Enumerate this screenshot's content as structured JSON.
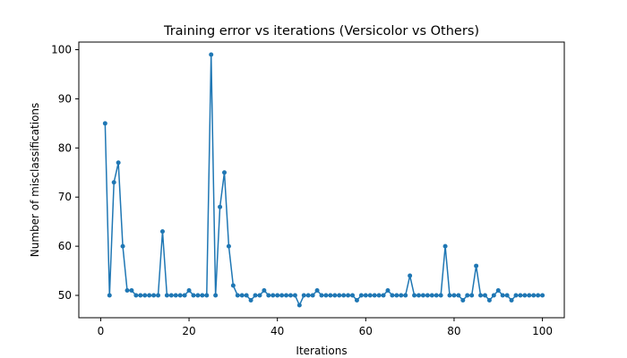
{
  "chart_data": {
    "type": "line",
    "title": "Training error vs iterations (Versicolor vs Others)",
    "xlabel": "Iterations",
    "ylabel": "Number of misclassifications",
    "xlim": [
      -4.95,
      104.95
    ],
    "ylim": [
      45.45,
      101.55
    ],
    "xticks": [
      0,
      20,
      40,
      60,
      80,
      100
    ],
    "yticks": [
      50,
      60,
      70,
      80,
      90,
      100
    ],
    "grid": false,
    "legend": "none",
    "colors": {
      "line": "#1f77b4"
    },
    "series": [
      {
        "marker": "circle",
        "x": [
          1,
          2,
          3,
          4,
          5,
          6,
          7,
          8,
          9,
          10,
          11,
          12,
          13,
          14,
          15,
          16,
          17,
          18,
          19,
          20,
          21,
          22,
          23,
          24,
          25,
          26,
          27,
          28,
          29,
          30,
          31,
          32,
          33,
          34,
          35,
          36,
          37,
          38,
          39,
          40,
          41,
          42,
          43,
          44,
          45,
          46,
          47,
          48,
          49,
          50,
          51,
          52,
          53,
          54,
          55,
          56,
          57,
          58,
          59,
          60,
          61,
          62,
          63,
          64,
          65,
          66,
          67,
          68,
          69,
          70,
          71,
          72,
          73,
          74,
          75,
          76,
          77,
          78,
          79,
          80,
          81,
          82,
          83,
          84,
          85,
          86,
          87,
          88,
          89,
          90,
          91,
          92,
          93,
          94,
          95,
          96,
          97,
          98,
          99,
          100
        ],
        "y": [
          85,
          50,
          73,
          77,
          60,
          51,
          51,
          50,
          50,
          50,
          50,
          50,
          50,
          63,
          50,
          50,
          50,
          50,
          50,
          51,
          50,
          50,
          50,
          50,
          99,
          50,
          68,
          75,
          60,
          52,
          50,
          50,
          50,
          49,
          50,
          50,
          51,
          50,
          50,
          50,
          50,
          50,
          50,
          50,
          48,
          50,
          50,
          50,
          51,
          50,
          50,
          50,
          50,
          50,
          50,
          50,
          50,
          49,
          50,
          50,
          50,
          50,
          50,
          50,
          51,
          50,
          50,
          50,
          50,
          54,
          50,
          50,
          50,
          50,
          50,
          50,
          50,
          60,
          50,
          50,
          50,
          49,
          50,
          50,
          56,
          50,
          50,
          49,
          50,
          51,
          50,
          50,
          49,
          50,
          50,
          50,
          50,
          50,
          50,
          50
        ]
      }
    ]
  }
}
